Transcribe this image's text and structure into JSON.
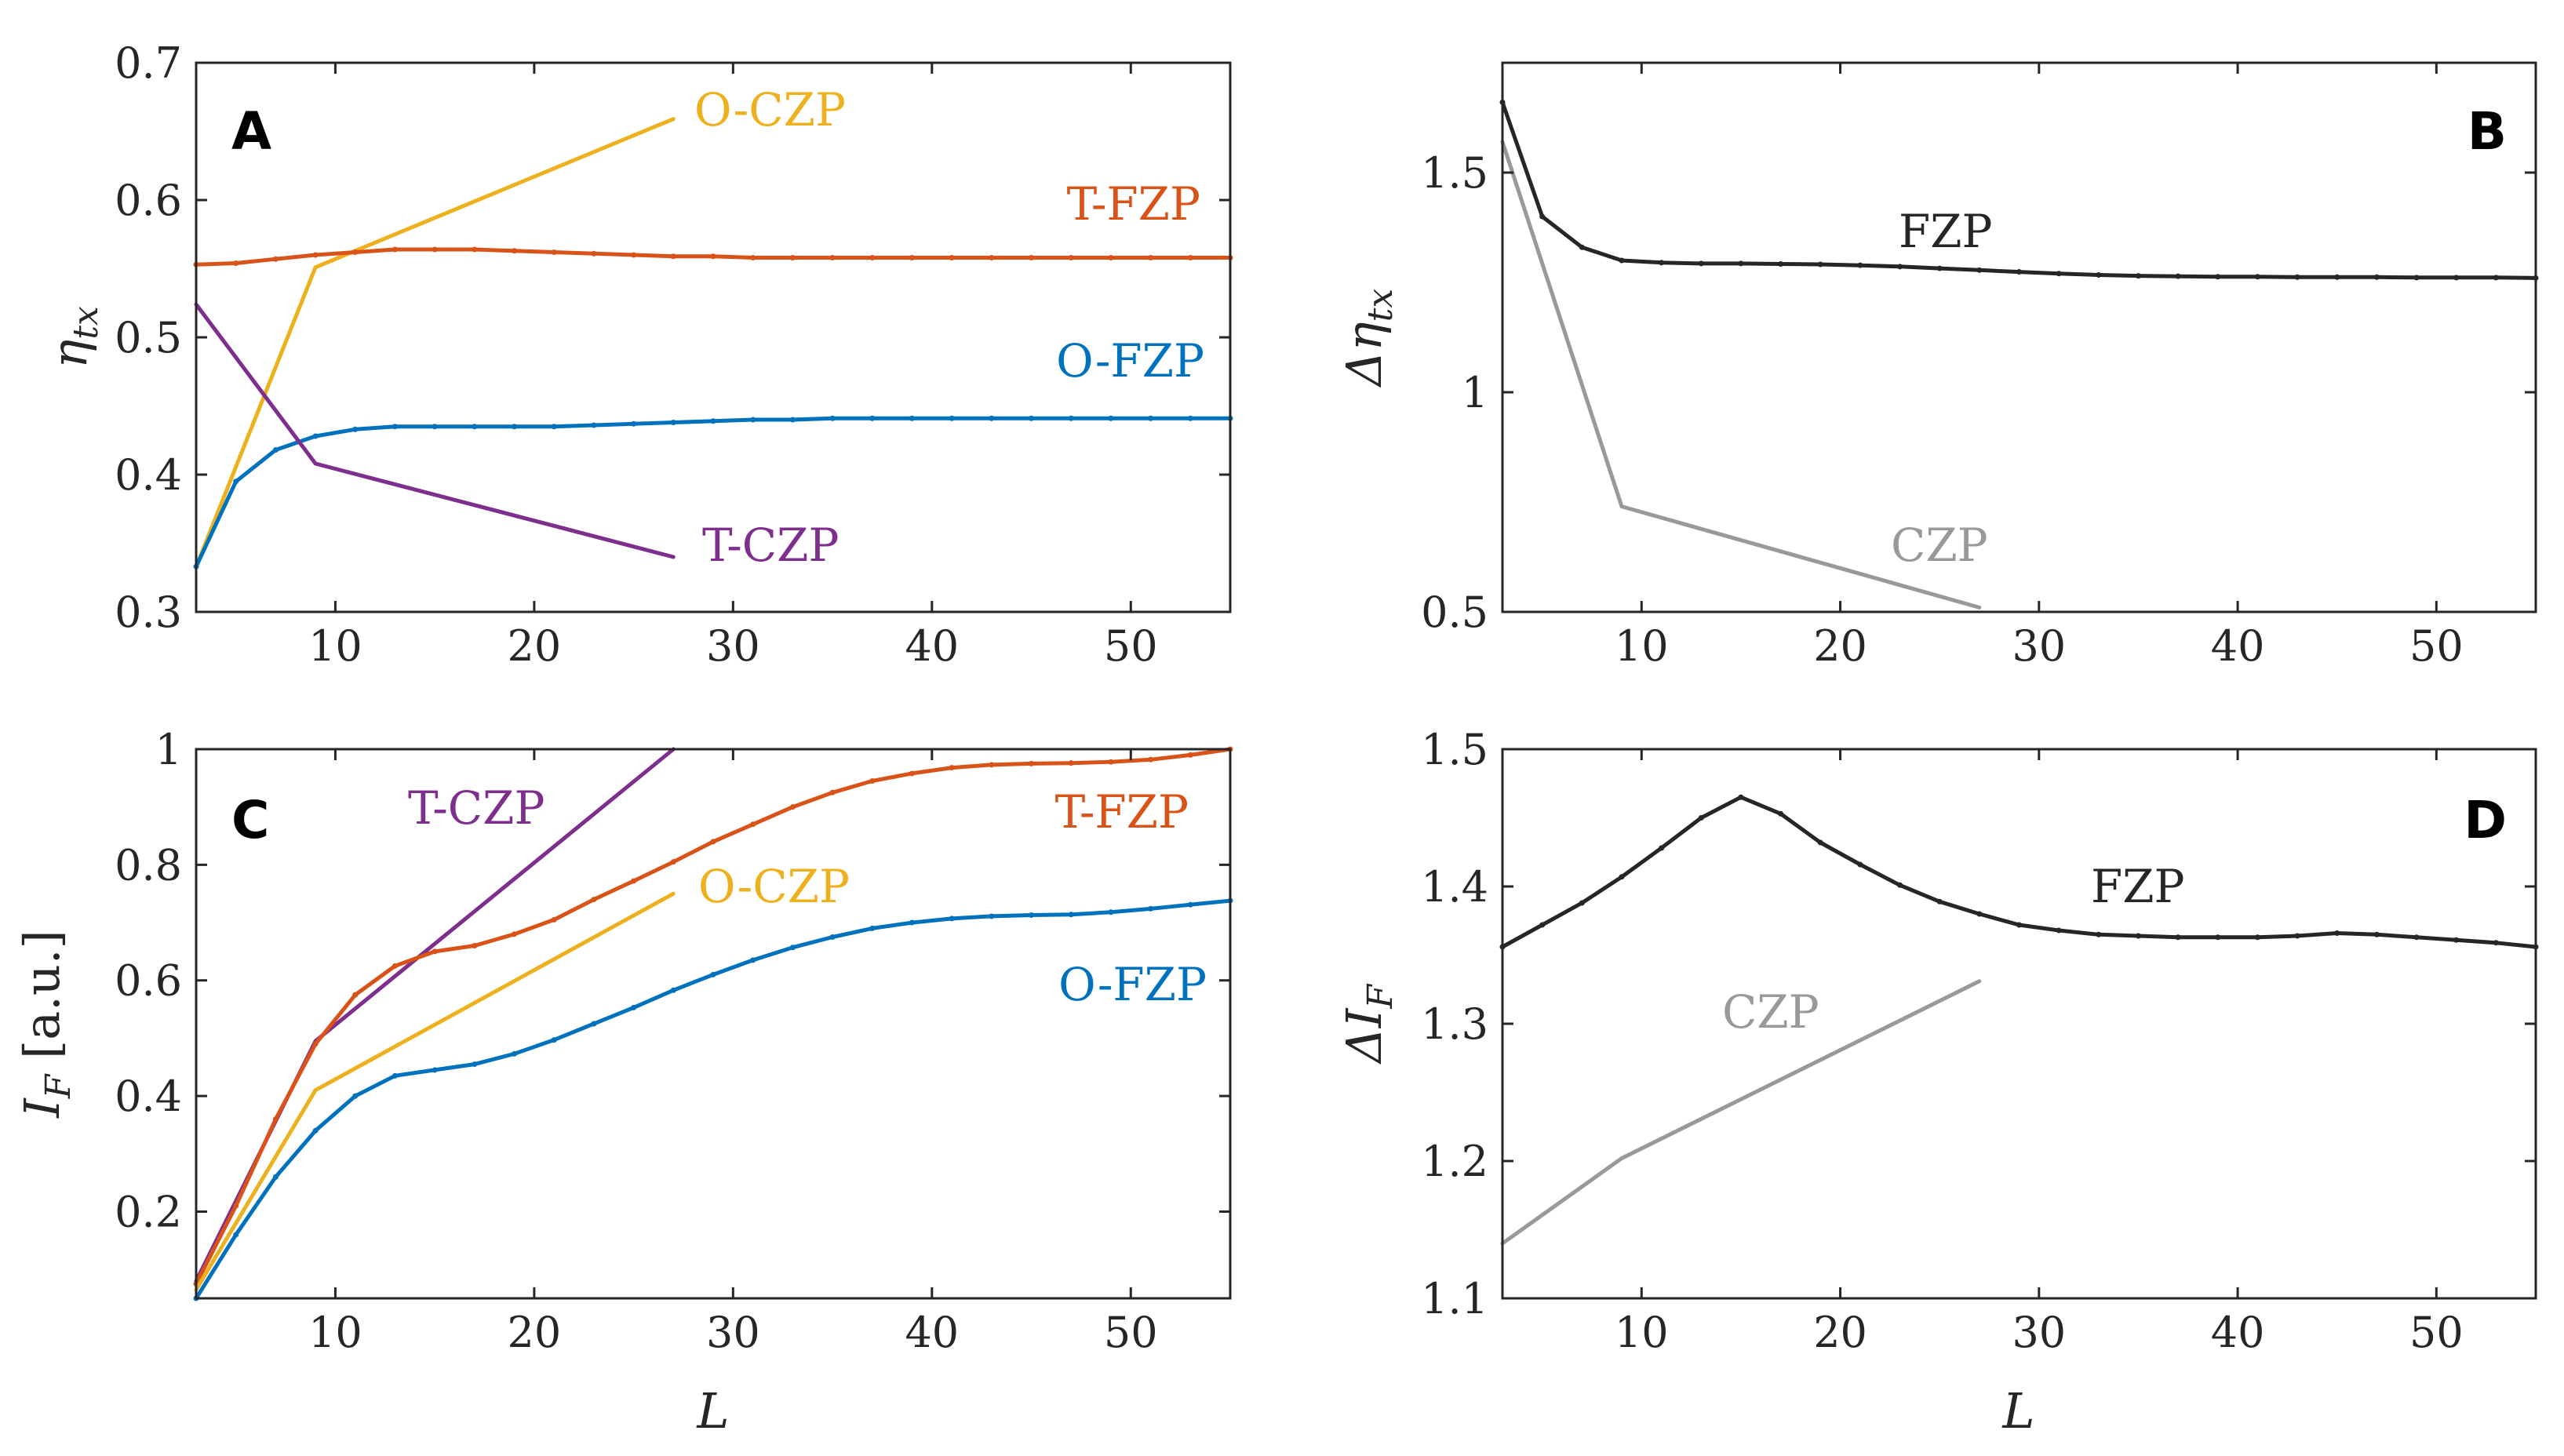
{
  "chart_data": [
    {
      "type": "line",
      "panel": "A",
      "xlabel": "L",
      "ylabel": "η_tx",
      "xlim": [
        3,
        55
      ],
      "ylim": [
        0.3,
        0.7
      ],
      "xticks": [
        10,
        20,
        30,
        40,
        50
      ],
      "yticks": [
        0.3,
        0.4,
        0.5,
        0.6,
        0.7
      ],
      "series": [
        {
          "name": "O-CZP",
          "color": "#EDB120",
          "markers": false,
          "x": [
            3,
            9,
            27
          ],
          "values": [
            0.333,
            0.551,
            0.659
          ]
        },
        {
          "name": "T-FZP",
          "color": "#D95319",
          "markers": true,
          "x": [
            3,
            5,
            7,
            9,
            11,
            13,
            15,
            17,
            19,
            21,
            23,
            25,
            27,
            29,
            31,
            33,
            35,
            37,
            39,
            41,
            43,
            45,
            47,
            49,
            51,
            53,
            55
          ],
          "values": [
            0.553,
            0.554,
            0.557,
            0.56,
            0.562,
            0.564,
            0.564,
            0.564,
            0.563,
            0.562,
            0.561,
            0.56,
            0.559,
            0.559,
            0.558,
            0.558,
            0.558,
            0.558,
            0.558,
            0.558,
            0.558,
            0.558,
            0.558,
            0.558,
            0.558,
            0.558,
            0.558
          ]
        },
        {
          "name": "O-FZP",
          "color": "#0072BD",
          "markers": true,
          "x": [
            3,
            5,
            7,
            9,
            11,
            13,
            15,
            17,
            19,
            21,
            23,
            25,
            27,
            29,
            31,
            33,
            35,
            37,
            39,
            41,
            43,
            45,
            47,
            49,
            51,
            53,
            55
          ],
          "values": [
            0.333,
            0.395,
            0.418,
            0.428,
            0.433,
            0.435,
            0.435,
            0.435,
            0.435,
            0.435,
            0.436,
            0.437,
            0.438,
            0.439,
            0.44,
            0.44,
            0.441,
            0.441,
            0.441,
            0.441,
            0.441,
            0.441,
            0.441,
            0.441,
            0.441,
            0.441,
            0.441
          ]
        },
        {
          "name": "T-CZP",
          "color": "#7E2F8E",
          "markers": false,
          "x": [
            3,
            9,
            27
          ],
          "values": [
            0.524,
            0.408,
            0.34
          ]
        }
      ]
    },
    {
      "type": "line",
      "panel": "B",
      "xlabel": "",
      "ylabel": "Δη_tx",
      "xlim": [
        3,
        55
      ],
      "ylim": [
        0.5,
        1.75
      ],
      "xticks": [
        10,
        20,
        30,
        40,
        50
      ],
      "yticks": [
        0.5,
        1,
        1.5
      ],
      "series": [
        {
          "name": "FZP",
          "color": "#262626",
          "markers": true,
          "x": [
            3,
            5,
            7,
            9,
            11,
            13,
            15,
            17,
            19,
            21,
            23,
            25,
            27,
            29,
            31,
            33,
            35,
            37,
            39,
            41,
            43,
            45,
            47,
            49,
            51,
            53,
            55
          ],
          "values": [
            1.66,
            1.4,
            1.33,
            1.3,
            1.295,
            1.293,
            1.293,
            1.292,
            1.291,
            1.289,
            1.286,
            1.282,
            1.278,
            1.274,
            1.27,
            1.267,
            1.265,
            1.264,
            1.263,
            1.263,
            1.262,
            1.262,
            1.262,
            1.261,
            1.261,
            1.261,
            1.26
          ]
        },
        {
          "name": "CZP",
          "color": "#999999",
          "markers": false,
          "x": [
            3,
            9,
            27
          ],
          "values": [
            1.57,
            0.74,
            0.51
          ]
        }
      ]
    },
    {
      "type": "line",
      "panel": "C",
      "xlabel": "L",
      "ylabel": "I_F [a.u.]",
      "xlim": [
        3,
        55
      ],
      "ylim": [
        0.05,
        1.0
      ],
      "xticks": [
        10,
        20,
        30,
        40,
        50
      ],
      "yticks": [
        0.2,
        0.4,
        0.6,
        0.8,
        1
      ],
      "series": [
        {
          "name": "T-CZP",
          "color": "#7E2F8E",
          "markers": false,
          "x": [
            3,
            9,
            27
          ],
          "values": [
            0.08,
            0.495,
            1.0
          ]
        },
        {
          "name": "T-FZP",
          "color": "#D95319",
          "markers": true,
          "x": [
            3,
            5,
            7,
            9,
            11,
            13,
            15,
            17,
            19,
            21,
            23,
            25,
            27,
            29,
            31,
            33,
            35,
            37,
            39,
            41,
            43,
            45,
            47,
            49,
            51,
            53,
            55
          ],
          "values": [
            0.075,
            0.21,
            0.36,
            0.49,
            0.575,
            0.625,
            0.65,
            0.66,
            0.68,
            0.705,
            0.74,
            0.772,
            0.805,
            0.84,
            0.87,
            0.9,
            0.925,
            0.945,
            0.958,
            0.968,
            0.973,
            0.975,
            0.976,
            0.978,
            0.982,
            0.99,
            1.0
          ]
        },
        {
          "name": "O-CZP",
          "color": "#EDB120",
          "markers": false,
          "x": [
            3,
            9,
            27
          ],
          "values": [
            0.065,
            0.41,
            0.75
          ]
        },
        {
          "name": "O-FZP",
          "color": "#0072BD",
          "markers": true,
          "x": [
            3,
            5,
            7,
            9,
            11,
            13,
            15,
            17,
            19,
            21,
            23,
            25,
            27,
            29,
            31,
            33,
            35,
            37,
            39,
            41,
            43,
            45,
            47,
            49,
            51,
            53,
            55
          ],
          "values": [
            0.05,
            0.16,
            0.26,
            0.34,
            0.4,
            0.435,
            0.445,
            0.455,
            0.473,
            0.497,
            0.525,
            0.553,
            0.583,
            0.61,
            0.635,
            0.657,
            0.675,
            0.69,
            0.7,
            0.707,
            0.711,
            0.713,
            0.714,
            0.718,
            0.724,
            0.731,
            0.738
          ]
        }
      ]
    },
    {
      "type": "line",
      "panel": "D",
      "xlabel": "L",
      "ylabel": "ΔI_F",
      "xlim": [
        3,
        55
      ],
      "ylim": [
        1.1,
        1.5
      ],
      "xticks": [
        10,
        20,
        30,
        40,
        50
      ],
      "yticks": [
        1.1,
        1.2,
        1.3,
        1.4,
        1.5
      ],
      "series": [
        {
          "name": "FZP",
          "color": "#262626",
          "markers": true,
          "x": [
            3,
            5,
            7,
            9,
            11,
            13,
            15,
            17,
            19,
            21,
            23,
            25,
            27,
            29,
            31,
            33,
            35,
            37,
            39,
            41,
            43,
            45,
            47,
            49,
            51,
            53,
            55
          ],
          "values": [
            1.356,
            1.372,
            1.388,
            1.407,
            1.428,
            1.45,
            1.465,
            1.453,
            1.432,
            1.416,
            1.401,
            1.389,
            1.38,
            1.372,
            1.368,
            1.365,
            1.364,
            1.363,
            1.363,
            1.363,
            1.364,
            1.366,
            1.365,
            1.363,
            1.361,
            1.359,
            1.356
          ]
        },
        {
          "name": "CZP",
          "color": "#999999",
          "markers": false,
          "x": [
            3,
            9,
            27
          ],
          "values": [
            1.14,
            1.202,
            1.331
          ]
        }
      ]
    }
  ],
  "panels": [
    {
      "letter": "A",
      "tick_labels_x": [
        "10",
        "20",
        "30",
        "40",
        "50"
      ],
      "tick_labels_y": [
        "0.3",
        "0.4",
        "0.5",
        "0.6",
        "0.7"
      ],
      "ylabel_main": "η",
      "ylabel_sub": "tx",
      "xlabel": "",
      "series_labels": [
        "O-CZP",
        "T-FZP",
        "O-FZP",
        "T-CZP"
      ]
    },
    {
      "letter": "B",
      "tick_labels_x": [
        "10",
        "20",
        "30",
        "40",
        "50"
      ],
      "tick_labels_y": [
        "0.5",
        "1",
        "1.5"
      ],
      "ylabel_main": "Δη",
      "ylabel_sub": "tx",
      "xlabel": "",
      "series_labels": [
        "FZP",
        "CZP"
      ]
    },
    {
      "letter": "C",
      "tick_labels_x": [
        "10",
        "20",
        "30",
        "40",
        "50"
      ],
      "tick_labels_y": [
        "0.2",
        "0.4",
        "0.6",
        "0.8",
        "1"
      ],
      "ylabel_main": "I",
      "ylabel_sub": "F",
      "ylabel_suffix": " [a.u.]",
      "xlabel": "L",
      "series_labels": [
        "T-CZP",
        "T-FZP",
        "O-CZP",
        "O-FZP"
      ]
    },
    {
      "letter": "D",
      "tick_labels_x": [
        "10",
        "20",
        "30",
        "40",
        "50"
      ],
      "tick_labels_y": [
        "1.1",
        "1.2",
        "1.3",
        "1.4",
        "1.5"
      ],
      "ylabel_main": "ΔI",
      "ylabel_sub": "F",
      "xlabel": "L",
      "series_labels": [
        "FZP",
        "CZP"
      ]
    }
  ]
}
